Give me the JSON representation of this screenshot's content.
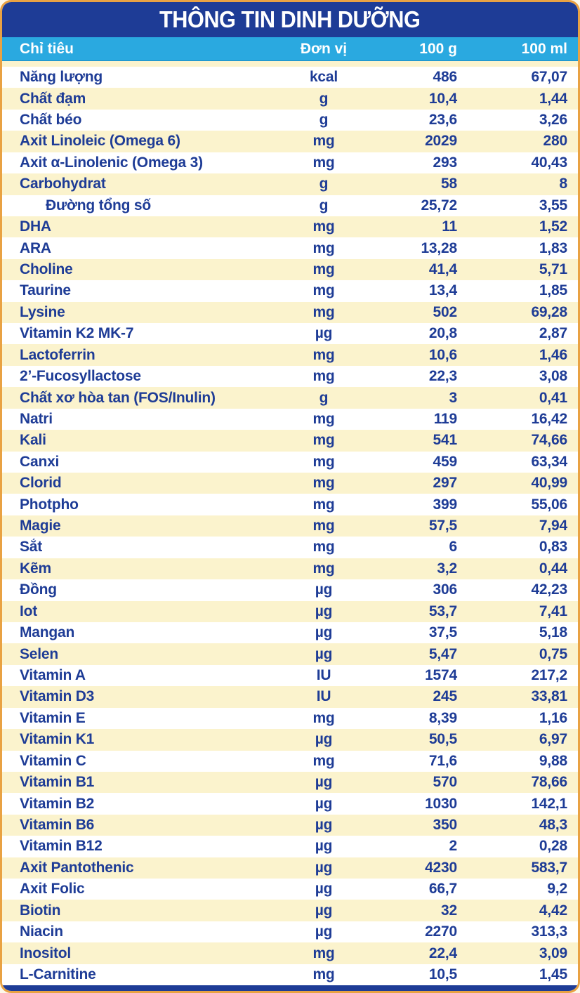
{
  "table": {
    "title": "THÔNG TIN DINH DƯỠNG",
    "columns": {
      "criteria": "Chỉ tiêu",
      "unit": "Đơn vị",
      "per_100g": "100 g",
      "per_100ml": "100 ml"
    },
    "palette": {
      "title_bar_blue": "#1e3c96",
      "column_header_blue": "#2aa9e0",
      "stripe_yellow": "#fbf3cd",
      "row_white": "#ffffff",
      "text_navy": "#1e3c96",
      "header_text_white": "#ffffff",
      "border_orange": "#e9a243"
    },
    "rows": [
      {
        "label": "Năng lượng",
        "unit": "kcal",
        "per_100g": "486",
        "per_100ml": "67,07",
        "indent": false
      },
      {
        "label": "Chất đạm",
        "unit": "g",
        "per_100g": "10,4",
        "per_100ml": "1,44",
        "indent": false
      },
      {
        "label": "Chất béo",
        "unit": "g",
        "per_100g": "23,6",
        "per_100ml": "3,26",
        "indent": false
      },
      {
        "label": "Axit Linoleic (Omega 6)",
        "unit": "mg",
        "per_100g": "2029",
        "per_100ml": "280",
        "indent": false
      },
      {
        "label": "Axit α-Linolenic (Omega 3)",
        "unit": "mg",
        "per_100g": "293",
        "per_100ml": "40,43",
        "indent": false
      },
      {
        "label": "Carbohydrat",
        "unit": "g",
        "per_100g": "58",
        "per_100ml": "8",
        "indent": false
      },
      {
        "label": "Đường tổng số",
        "unit": "g",
        "per_100g": "25,72",
        "per_100ml": "3,55",
        "indent": true
      },
      {
        "label": "DHA",
        "unit": "mg",
        "per_100g": "11",
        "per_100ml": "1,52",
        "indent": false
      },
      {
        "label": "ARA",
        "unit": "mg",
        "per_100g": "13,28",
        "per_100ml": "1,83",
        "indent": false
      },
      {
        "label": "Choline",
        "unit": "mg",
        "per_100g": "41,4",
        "per_100ml": "5,71",
        "indent": false
      },
      {
        "label": "Taurine",
        "unit": "mg",
        "per_100g": "13,4",
        "per_100ml": "1,85",
        "indent": false
      },
      {
        "label": "Lysine",
        "unit": "mg",
        "per_100g": "502",
        "per_100ml": "69,28",
        "indent": false
      },
      {
        "label": "Vitamin K2 MK-7",
        "unit": "µg",
        "per_100g": "20,8",
        "per_100ml": "2,87",
        "indent": false
      },
      {
        "label": "Lactoferrin",
        "unit": "mg",
        "per_100g": "10,6",
        "per_100ml": "1,46",
        "indent": false
      },
      {
        "label": "2’-Fucosyllactose",
        "unit": "mg",
        "per_100g": "22,3",
        "per_100ml": "3,08",
        "indent": false
      },
      {
        "label": "Chất xơ hòa tan (FOS/Inulin)",
        "unit": "g",
        "per_100g": "3",
        "per_100ml": "0,41",
        "indent": false
      },
      {
        "label": "Natri",
        "unit": "mg",
        "per_100g": "119",
        "per_100ml": "16,42",
        "indent": false
      },
      {
        "label": "Kali",
        "unit": "mg",
        "per_100g": "541",
        "per_100ml": "74,66",
        "indent": false
      },
      {
        "label": "Canxi",
        "unit": "mg",
        "per_100g": "459",
        "per_100ml": "63,34",
        "indent": false
      },
      {
        "label": "Clorid",
        "unit": "mg",
        "per_100g": "297",
        "per_100ml": "40,99",
        "indent": false
      },
      {
        "label": "Photpho",
        "unit": "mg",
        "per_100g": "399",
        "per_100ml": "55,06",
        "indent": false
      },
      {
        "label": "Magie",
        "unit": "mg",
        "per_100g": "57,5",
        "per_100ml": "7,94",
        "indent": false
      },
      {
        "label": "Sắt",
        "unit": "mg",
        "per_100g": "6",
        "per_100ml": "0,83",
        "indent": false
      },
      {
        "label": "Kẽm",
        "unit": "mg",
        "per_100g": "3,2",
        "per_100ml": "0,44",
        "indent": false
      },
      {
        "label": "Đồng",
        "unit": "µg",
        "per_100g": "306",
        "per_100ml": "42,23",
        "indent": false
      },
      {
        "label": "Iot",
        "unit": "µg",
        "per_100g": "53,7",
        "per_100ml": "7,41",
        "indent": false
      },
      {
        "label": "Mangan",
        "unit": "µg",
        "per_100g": "37,5",
        "per_100ml": "5,18",
        "indent": false
      },
      {
        "label": "Selen",
        "unit": "µg",
        "per_100g": "5,47",
        "per_100ml": "0,75",
        "indent": false
      },
      {
        "label": "Vitamin A",
        "unit": "IU",
        "per_100g": "1574",
        "per_100ml": "217,2",
        "indent": false
      },
      {
        "label": "Vitamin D3",
        "unit": "IU",
        "per_100g": "245",
        "per_100ml": "33,81",
        "indent": false
      },
      {
        "label": "Vitamin E",
        "unit": "mg",
        "per_100g": "8,39",
        "per_100ml": "1,16",
        "indent": false
      },
      {
        "label": "Vitamin K1",
        "unit": "µg",
        "per_100g": "50,5",
        "per_100ml": "6,97",
        "indent": false
      },
      {
        "label": "Vitamin C",
        "unit": "mg",
        "per_100g": "71,6",
        "per_100ml": "9,88",
        "indent": false
      },
      {
        "label": "Vitamin B1",
        "unit": "µg",
        "per_100g": "570",
        "per_100ml": "78,66",
        "indent": false
      },
      {
        "label": "Vitamin B2",
        "unit": "µg",
        "per_100g": "1030",
        "per_100ml": "142,1",
        "indent": false
      },
      {
        "label": "Vitamin B6",
        "unit": "µg",
        "per_100g": "350",
        "per_100ml": "48,3",
        "indent": false
      },
      {
        "label": "Vitamin B12",
        "unit": "µg",
        "per_100g": "2",
        "per_100ml": "0,28",
        "indent": false
      },
      {
        "label": "Axit Pantothenic",
        "unit": "µg",
        "per_100g": "4230",
        "per_100ml": "583,7",
        "indent": false
      },
      {
        "label": "Axit Folic",
        "unit": "µg",
        "per_100g": "66,7",
        "per_100ml": "9,2",
        "indent": false
      },
      {
        "label": "Biotin",
        "unit": "µg",
        "per_100g": "32",
        "per_100ml": "4,42",
        "indent": false
      },
      {
        "label": "Niacin",
        "unit": "µg",
        "per_100g": "2270",
        "per_100ml": "313,3",
        "indent": false
      },
      {
        "label": "Inositol",
        "unit": "mg",
        "per_100g": "22,4",
        "per_100ml": "3,09",
        "indent": false
      },
      {
        "label": "L-Carnitine",
        "unit": "mg",
        "per_100g": "10,5",
        "per_100ml": "1,45",
        "indent": false
      }
    ]
  }
}
